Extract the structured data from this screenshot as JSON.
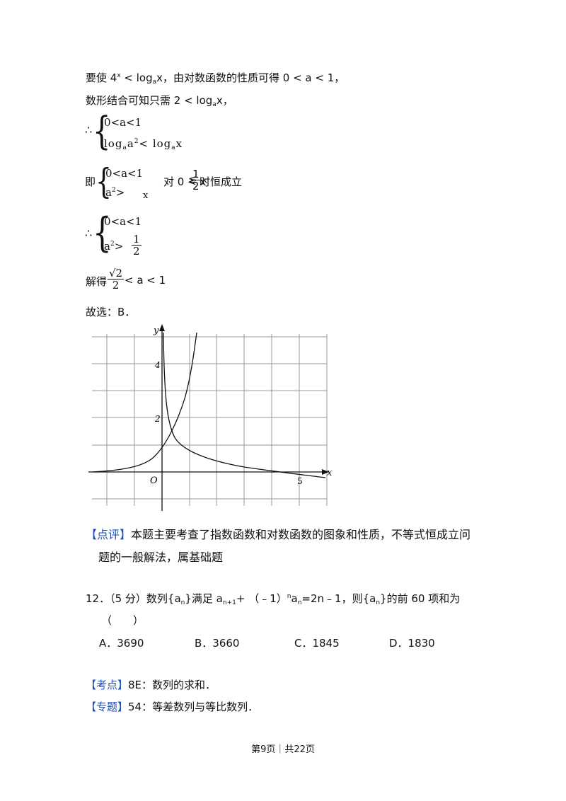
{
  "lines": {
    "l1": {
      "pre": "要使 4",
      "sup": "x",
      "mid": " < log",
      "sub": "a",
      "post": "x，由对数函数的性质可得 0 < a < 1，"
    },
    "l2": {
      "pre": "数形结合可知只需 2 < log",
      "sub": "a",
      "post": "x，"
    },
    "therefore": "∴",
    "sys1": {
      "row1": "0<a<1",
      "row2_pre": "log",
      "row2_sub": "a",
      "row2_mid": "a",
      "row2_sup": "2",
      "row2_op": "< log",
      "row2_sub2": "a",
      "row2_post": "x"
    },
    "sys2": {
      "prefix": "即",
      "row1": "0<a<1",
      "row2_pre": "a",
      "row2_sup": "2",
      "row2_op": ">",
      "row2_post": "x",
      "cond_pre": "对 0 < x",
      "cond_le": "≤",
      "cond_num": "1",
      "cond_den": "2",
      "cond_post": "时恒成立"
    },
    "sys3": {
      "row1": "0<a<1",
      "row2_pre": "a",
      "row2_sup": "2",
      "row2_op": ">",
      "num": "1",
      "den": "2"
    },
    "solve": {
      "pre": "解得",
      "num": "√2",
      "den": "2",
      "post": " < a < 1"
    },
    "answer": "故选：B．"
  },
  "graph": {
    "y_label": "y",
    "x_label": "x",
    "origin_label": "O",
    "tick_4": "4",
    "tick_2": "2",
    "tick_5": "5"
  },
  "comment": {
    "tag": "【点评】",
    "line1": "本题主要考查了指数函数和对数函数的图象和性质，不等式恒成立问",
    "line2": "题的一般解法，属基础题"
  },
  "q12": {
    "number": "12．",
    "score": "（5 分）",
    "t1": "数列{a",
    "t1s": "n",
    "t2": "}满足 a",
    "t2s": "n+1",
    "t3": "+ （﹣1）",
    "t3sup": "n",
    "t4": "a",
    "t4s": "n",
    "t5": "=2n﹣1，则{a",
    "t5s": "n",
    "t6": "}的前 60 项和为",
    "paren": "（　　）",
    "options": [
      "A．3690",
      "B．3660",
      "C．1845",
      "D．1830"
    ]
  },
  "kaodian": {
    "tag": "【考点】",
    "text": "8E：数列的求和．"
  },
  "zhuanti": {
    "tag": "【专题】",
    "text": "54：等差数列与等比数列．"
  },
  "footer": "第9页｜共22页"
}
